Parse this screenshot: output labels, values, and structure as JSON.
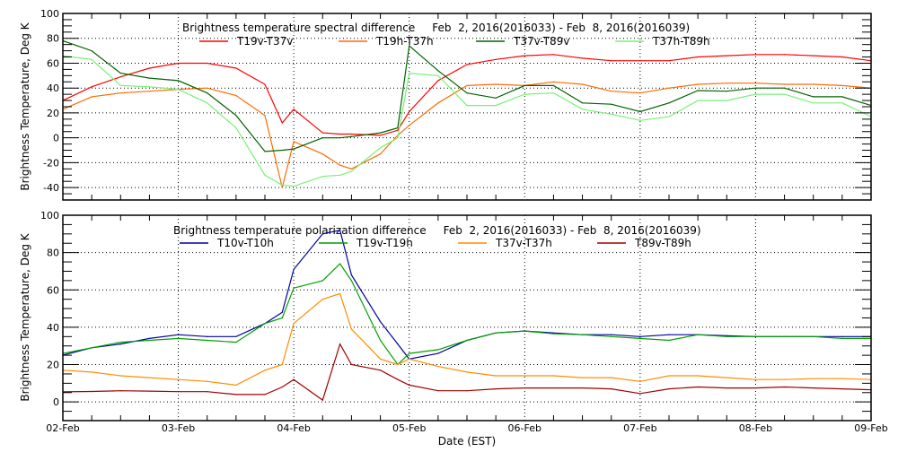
{
  "x_axis_label": "Date (EST)",
  "x_tick_labels": [
    "02-Feb",
    "03-Feb",
    "04-Feb",
    "05-Feb",
    "06-Feb",
    "07-Feb",
    "08-Feb",
    "09-Feb"
  ],
  "chart_data": [
    {
      "type": "line",
      "title": "Brightness temperature spectral difference     Feb  2, 2016(2016033) - Feb  8, 2016(2016039)",
      "ylabel": "Brightness Temperature, Deg K",
      "xlabel": "Date (EST)",
      "ylim": [
        -50,
        100
      ],
      "yticks": [
        -40,
        -20,
        0,
        20,
        40,
        60,
        80,
        100
      ],
      "xlim": [
        "02-Feb 00:00",
        "09-Feb 00:00"
      ],
      "grid": true,
      "legend": "top",
      "x": [
        "02-Feb 00:00",
        "02-Feb 06:00",
        "02-Feb 12:00",
        "02-Feb 18:00",
        "03-Feb 00:00",
        "03-Feb 06:00",
        "03-Feb 12:00",
        "03-Feb 18:00",
        "03-Feb 21:36",
        "04-Feb 00:00",
        "04-Feb 06:00",
        "04-Feb 09:36",
        "04-Feb 12:00",
        "04-Feb 18:00",
        "04-Feb 21:36",
        "05-Feb 00:00",
        "05-Feb 06:00",
        "05-Feb 12:00",
        "05-Feb 18:00",
        "06-Feb 00:00",
        "06-Feb 06:00",
        "06-Feb 12:00",
        "06-Feb 18:00",
        "07-Feb 00:00",
        "07-Feb 06:00",
        "07-Feb 12:00",
        "07-Feb 18:00",
        "08-Feb 00:00",
        "08-Feb 06:00",
        "08-Feb 12:00",
        "08-Feb 18:00",
        "09-Feb 00:00"
      ],
      "series": [
        {
          "name": "T19v-T37v",
          "color": "#ff0000",
          "values": [
            30,
            41,
            49,
            56,
            60,
            60,
            56,
            43,
            12,
            23,
            4,
            3,
            3,
            2,
            6,
            21,
            46,
            59,
            63,
            66,
            67,
            64,
            62,
            62,
            62,
            65,
            66,
            67,
            67,
            66,
            65,
            62
          ]
        },
        {
          "name": "T19h-T37h",
          "color": "#ff6a00",
          "values": [
            23,
            33,
            36,
            37.5,
            39,
            40,
            34,
            18,
            -40,
            -3,
            -13,
            -22,
            -25,
            -13,
            2,
            10,
            28,
            42,
            43,
            42,
            45,
            43,
            37.5,
            36,
            40,
            43,
            44,
            44,
            43,
            43,
            42,
            40
          ]
        },
        {
          "name": "T37v-T89v",
          "color": "#006400",
          "values": [
            78,
            70,
            52,
            48,
            46,
            36,
            18,
            -11,
            -10,
            -9,
            0,
            0,
            1,
            4,
            8,
            74,
            54,
            36,
            32,
            42,
            42,
            28,
            27,
            21,
            28,
            38,
            37.5,
            40,
            40,
            33,
            33,
            26
          ]
        },
        {
          "name": "T37h-T89h",
          "color": "#77f077",
          "values": [
            66,
            63,
            42,
            41,
            39,
            28,
            8,
            -30,
            -38,
            -39,
            -31,
            -30,
            -27,
            -8,
            0,
            52,
            50,
            26,
            26,
            35,
            36,
            23,
            19,
            14,
            17,
            30,
            30,
            35,
            35,
            28,
            28,
            17
          ]
        }
      ]
    },
    {
      "type": "line",
      "title": "Brightness temperature polarization difference     Feb  2, 2016(2016033) - Feb  8, 2016(2016039)",
      "ylabel": "Brightness Temperature, Deg K",
      "xlabel": "Date (EST)",
      "ylim": [
        -10,
        100
      ],
      "yticks": [
        0,
        20,
        40,
        60,
        80,
        100
      ],
      "xlim": [
        "02-Feb 00:00",
        "09-Feb 00:00"
      ],
      "grid": true,
      "legend": "top",
      "x": [
        "02-Feb 00:00",
        "02-Feb 06:00",
        "02-Feb 12:00",
        "02-Feb 18:00",
        "03-Feb 00:00",
        "03-Feb 06:00",
        "03-Feb 12:00",
        "03-Feb 18:00",
        "03-Feb 21:36",
        "04-Feb 00:00",
        "04-Feb 06:00",
        "04-Feb 09:36",
        "04-Feb 12:00",
        "04-Feb 18:00",
        "04-Feb 21:36",
        "05-Feb 00:00",
        "05-Feb 06:00",
        "05-Feb 12:00",
        "05-Feb 18:00",
        "06-Feb 00:00",
        "06-Feb 06:00",
        "06-Feb 12:00",
        "06-Feb 18:00",
        "07-Feb 00:00",
        "07-Feb 06:00",
        "07-Feb 12:00",
        "07-Feb 18:00",
        "08-Feb 00:00",
        "08-Feb 06:00",
        "08-Feb 12:00",
        "08-Feb 18:00",
        "09-Feb 00:00"
      ],
      "series": [
        {
          "name": "T10v-T10h",
          "color": "#0000a0",
          "values": [
            25,
            29,
            31,
            34,
            36,
            35,
            35,
            42,
            48,
            71,
            90,
            92,
            68,
            43,
            31,
            23,
            26,
            33,
            37,
            38,
            37,
            36,
            36,
            35,
            36,
            36,
            35.5,
            35,
            35,
            35,
            35,
            35
          ]
        },
        {
          "name": "T19v-T19h",
          "color": "#00a000",
          "values": [
            26,
            29,
            32,
            33,
            34,
            33,
            32,
            42,
            45,
            61,
            65,
            74,
            65,
            33,
            20,
            26,
            28,
            33,
            37,
            38,
            36.5,
            36,
            35,
            34,
            33,
            36,
            35,
            35,
            35,
            35,
            34,
            34
          ]
        },
        {
          "name": "T37v-T37h",
          "color": "#ff8c00",
          "values": [
            17,
            16,
            14,
            13,
            12,
            11,
            9,
            17,
            20,
            42,
            55,
            58,
            39,
            23,
            20,
            23,
            19,
            16,
            14,
            14,
            14,
            13,
            13,
            11,
            14,
            14,
            13,
            12,
            12,
            12.5,
            12.5,
            12
          ]
        },
        {
          "name": "T89v-T89h",
          "color": "#a00000",
          "values": [
            5.4,
            5.6,
            6,
            5.8,
            5.5,
            5.5,
            4,
            4,
            8,
            12,
            1,
            31,
            20,
            17,
            12,
            9,
            6,
            6,
            7,
            7.5,
            7.5,
            7.5,
            7,
            4.5,
            7,
            8,
            7.5,
            7.5,
            8,
            7.5,
            7,
            6.5
          ]
        }
      ]
    }
  ]
}
